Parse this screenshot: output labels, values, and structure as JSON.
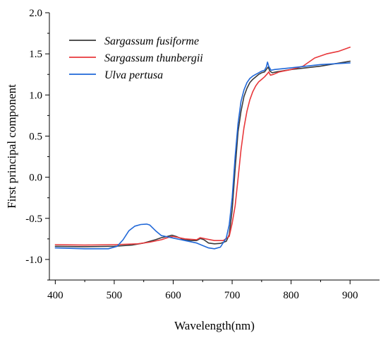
{
  "chart_data": {
    "type": "line",
    "xlabel": "Wavelength(nm)",
    "ylabel": "First principal component",
    "xlim": [
      390,
      950
    ],
    "ylim": [
      -1.25,
      2.0
    ],
    "xticks": [
      400,
      500,
      600,
      700,
      800,
      900
    ],
    "yticks": [
      -1.0,
      -0.5,
      0.0,
      0.5,
      1.0,
      1.5,
      2.0
    ],
    "ytick_labels": [
      "-1.0",
      "-0.5",
      "0.0",
      "0.5",
      "1.0",
      "1.5",
      "2.0"
    ],
    "grid": false,
    "legend_position": "top-left",
    "series": [
      {
        "name": "Sargassum fusiforme",
        "color": "#3a3a3a",
        "x": [
          400,
          450,
          500,
          530,
          550,
          570,
          580,
          590,
          598,
          605,
          615,
          630,
          640,
          646,
          652,
          660,
          670,
          680,
          690,
          695,
          700,
          705,
          710,
          715,
          720,
          725,
          730,
          735,
          740,
          745,
          750,
          755,
          758,
          761,
          764,
          768,
          775,
          800,
          850,
          900
        ],
        "values": [
          -0.84,
          -0.845,
          -0.84,
          -0.825,
          -0.8,
          -0.76,
          -0.735,
          -0.72,
          -0.705,
          -0.72,
          -0.75,
          -0.77,
          -0.77,
          -0.745,
          -0.76,
          -0.8,
          -0.81,
          -0.805,
          -0.78,
          -0.7,
          -0.4,
          0.1,
          0.55,
          0.8,
          0.98,
          1.08,
          1.15,
          1.19,
          1.22,
          1.25,
          1.27,
          1.28,
          1.31,
          1.34,
          1.29,
          1.27,
          1.28,
          1.31,
          1.35,
          1.41
        ]
      },
      {
        "name": "Sargassum thunbergii",
        "color": "#e8383b",
        "x": [
          400,
          450,
          500,
          540,
          560,
          580,
          595,
          600,
          620,
          640,
          646,
          655,
          670,
          685,
          695,
          700,
          705,
          710,
          715,
          720,
          725,
          730,
          735,
          740,
          745,
          750,
          755,
          760,
          762,
          765,
          770,
          780,
          800,
          820,
          840,
          860,
          880,
          900
        ],
        "values": [
          -0.82,
          -0.825,
          -0.82,
          -0.81,
          -0.79,
          -0.76,
          -0.725,
          -0.72,
          -0.75,
          -0.76,
          -0.735,
          -0.75,
          -0.77,
          -0.77,
          -0.72,
          -0.56,
          -0.35,
          -0.02,
          0.33,
          0.6,
          0.8,
          0.94,
          1.04,
          1.11,
          1.16,
          1.19,
          1.22,
          1.26,
          1.28,
          1.24,
          1.25,
          1.28,
          1.31,
          1.35,
          1.45,
          1.5,
          1.53,
          1.58
        ]
      },
      {
        "name": "Ulva pertusa",
        "color": "#2168d8",
        "x": [
          400,
          450,
          490,
          505,
          515,
          525,
          535,
          545,
          555,
          560,
          570,
          580,
          590,
          600,
          620,
          640,
          650,
          660,
          670,
          680,
          690,
          695,
          700,
          705,
          710,
          715,
          720,
          725,
          730,
          735,
          740,
          745,
          750,
          755,
          758,
          760,
          762,
          766,
          772,
          800,
          850,
          900
        ],
        "values": [
          -0.86,
          -0.87,
          -0.87,
          -0.84,
          -0.76,
          -0.65,
          -0.595,
          -0.575,
          -0.57,
          -0.58,
          -0.65,
          -0.71,
          -0.725,
          -0.74,
          -0.77,
          -0.8,
          -0.83,
          -0.86,
          -0.87,
          -0.85,
          -0.74,
          -0.58,
          -0.25,
          0.25,
          0.65,
          0.92,
          1.06,
          1.15,
          1.2,
          1.23,
          1.25,
          1.27,
          1.29,
          1.3,
          1.34,
          1.4,
          1.35,
          1.3,
          1.31,
          1.33,
          1.37,
          1.39
        ]
      }
    ]
  }
}
